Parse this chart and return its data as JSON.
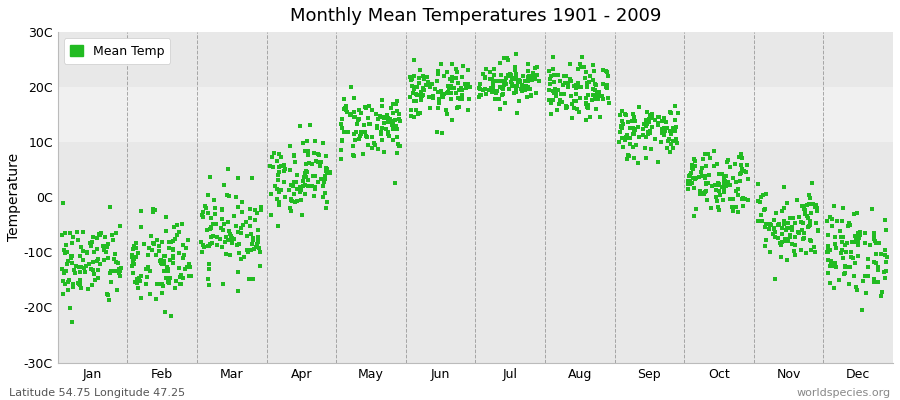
{
  "title": "Monthly Mean Temperatures 1901 - 2009",
  "ylabel": "Temperature",
  "xlabel_months": [
    "Jan",
    "Feb",
    "Mar",
    "Apr",
    "May",
    "Jun",
    "Jul",
    "Aug",
    "Sep",
    "Oct",
    "Nov",
    "Dec"
  ],
  "ytick_labels": [
    "-30C",
    "-20C",
    "-10C",
    "0C",
    "10C",
    "20C",
    "30C"
  ],
  "ytick_values": [
    -30,
    -20,
    -10,
    0,
    10,
    20,
    30
  ],
  "ylim": [
    -30,
    30
  ],
  "dot_color": "#22bb22",
  "dot_size": 5,
  "background_color": "#ffffff",
  "plot_bg_color": "#e8e8e8",
  "band_light": "#f0f0f0",
  "watermark_left": "Latitude 54.75 Longitude 47.25",
  "watermark_right": "worldspecies.org",
  "legend_label": "Mean Temp",
  "num_years": 109,
  "monthly_means": [
    -12,
    -12,
    -6,
    4,
    13,
    19,
    21,
    19,
    12,
    3,
    -5,
    -10
  ],
  "monthly_stds": [
    4.0,
    4.5,
    4.0,
    3.5,
    3.0,
    2.5,
    2.0,
    2.5,
    2.5,
    3.0,
    3.5,
    4.0
  ]
}
